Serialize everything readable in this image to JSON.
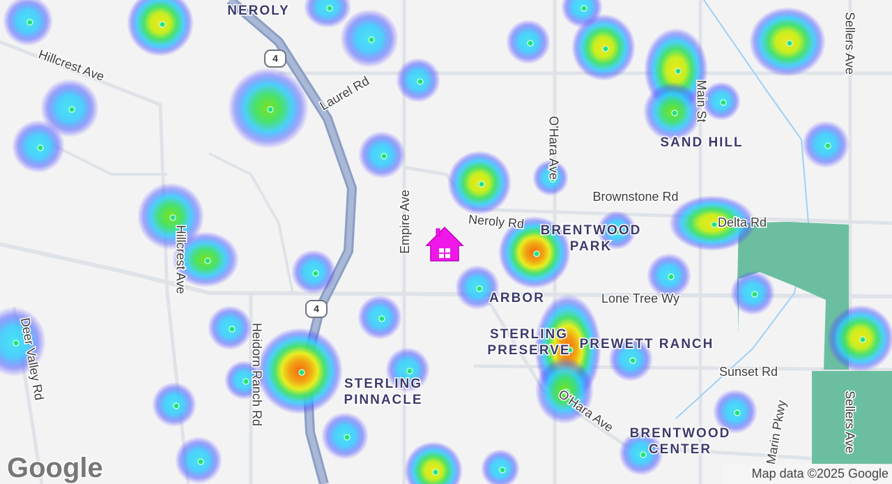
{
  "streets": [
    "Hillcrest Ave",
    "Laurel Rd",
    "O'Hara Ave",
    "Brownstone Rd",
    "Main St",
    "Sellers Ave",
    "Neroly Rd",
    "Delta Rd",
    "Empire Ave",
    "Hillcrest Ave",
    "Lone Tree Wy",
    "Deer Valley Rd",
    "Heidorn Ranch Rd",
    "Sunset Rd",
    "O'Hara Ave",
    "Sellers Ave",
    "Marin Pkwy"
  ],
  "highway_shields": [
    "4",
    "4"
  ],
  "neighborhoods": [
    [
      "NEROLY"
    ],
    [
      "SAND HILL"
    ],
    [
      "BRENTWOOD",
      "PARK"
    ],
    [
      "ARBOR"
    ],
    [
      "STERLING",
      "PRESERVE"
    ],
    [
      "PREWETT RANCH"
    ],
    [
      "STERLING",
      "PINNACLE"
    ],
    [
      "BRENTWOOD",
      "CENTER"
    ]
  ],
  "footer": {
    "logo": "Google",
    "attribution": "Map data ©2025 Google"
  }
}
